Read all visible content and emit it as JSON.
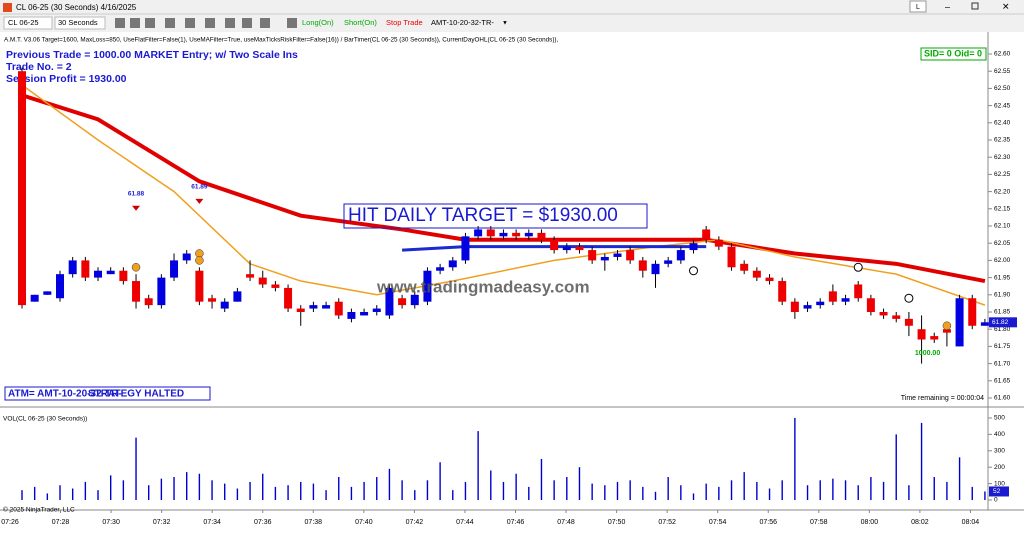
{
  "window": {
    "title": "CL 06-25 (30 Seconds)  4/16/2025",
    "button": "L"
  },
  "toolbar": {
    "instrument": "CL 06-25",
    "interval": "30 Seconds",
    "long": "Long(On)",
    "short": "Short(On)",
    "stop": "Stop Trade",
    "atm": "AMT-10-20-32-TR-"
  },
  "chart_data": [
    {
      "type": "candlestick",
      "indicator_label": "A.M.T. V3.06 Target=1600, MaxLoss=850, UseFlatFilter=False(1), UseMAFilter=True, useMaxTicksRiskFilter=False(16)) / BarTimer(CL 06-25 (30 Seconds)), CurrentDayOHL(CL 06-25 (30 Seconds)),",
      "info_lines": [
        "Previous Trade = 1000.00    MARKET Entry;  w/ Two Scale Ins",
        "Trade No. = 2",
        "Session Profit = 1930.00"
      ],
      "sid_box": "SID= 0   Oid= 0",
      "target_text": "HIT DAILY TARGET = $1930.00",
      "watermark": "www.tradingmadeasy.com",
      "atm_text": "ATM= AMT-10-20-32-TR-",
      "halt_text": "STRATEGY HALTED",
      "time_remaining": "Time remaining = 00:00:04",
      "copyright": "© 2025 NinjaTrader, LLC",
      "up_color": "#0000e0",
      "down_color": "#ee0000",
      "open": [
        62.55,
        61.88,
        61.9,
        61.89,
        61.96,
        62.0,
        61.95,
        61.96,
        61.97,
        61.94,
        61.89,
        61.87,
        61.95,
        62.0,
        61.97,
        61.89,
        61.86,
        61.88,
        61.96,
        61.95,
        61.93,
        61.92,
        61.86,
        61.86,
        61.86,
        61.88,
        61.83,
        61.84,
        61.85,
        61.84,
        61.89,
        61.87,
        61.88,
        61.97,
        61.98,
        62.0,
        62.07,
        62.09,
        62.07,
        62.08,
        62.07,
        62.08,
        62.06,
        62.03,
        62.04,
        62.03,
        62.0,
        62.01,
        62.03,
        62.0,
        61.96,
        61.99,
        62.0,
        62.03,
        62.09,
        62.06,
        62.04,
        61.99,
        61.97,
        61.95,
        61.94,
        61.88,
        61.86,
        61.87,
        61.91,
        61.88,
        61.93,
        61.89,
        61.85,
        61.84,
        61.83,
        61.8,
        61.78,
        61.8,
        61.75,
        61.89,
        61.81
      ],
      "high": [
        62.56,
        61.9,
        61.91,
        61.97,
        62.01,
        62.01,
        61.98,
        61.98,
        61.98,
        61.96,
        61.9,
        61.96,
        62.02,
        62.03,
        61.98,
        61.9,
        61.89,
        61.92,
        62.0,
        61.97,
        61.94,
        61.93,
        61.87,
        61.88,
        61.88,
        61.89,
        61.86,
        61.86,
        61.87,
        61.93,
        61.9,
        61.91,
        61.98,
        61.99,
        62.01,
        62.08,
        62.1,
        62.1,
        62.09,
        62.09,
        62.09,
        62.09,
        62.07,
        62.05,
        62.05,
        62.04,
        62.02,
        62.03,
        62.04,
        62.01,
        62.0,
        62.01,
        62.04,
        62.06,
        62.1,
        62.07,
        62.05,
        62.0,
        61.98,
        61.96,
        61.95,
        61.89,
        61.88,
        61.89,
        61.93,
        61.9,
        61.94,
        61.9,
        61.86,
        61.85,
        61.85,
        61.84,
        61.79,
        61.81,
        61.9,
        61.9,
        61.83
      ],
      "low": [
        61.86,
        61.88,
        61.9,
        61.88,
        61.95,
        61.94,
        61.94,
        61.96,
        61.93,
        61.86,
        61.86,
        61.86,
        61.94,
        61.99,
        61.87,
        61.86,
        61.85,
        61.88,
        61.94,
        61.92,
        61.91,
        61.85,
        61.81,
        61.85,
        61.86,
        61.83,
        61.82,
        61.84,
        61.84,
        61.83,
        61.86,
        61.86,
        61.87,
        61.96,
        61.97,
        61.99,
        62.06,
        62.06,
        62.06,
        62.06,
        62.06,
        62.05,
        62.02,
        62.02,
        62.02,
        61.99,
        61.97,
        62.0,
        61.99,
        61.95,
        61.92,
        61.98,
        61.99,
        62.02,
        62.05,
        62.03,
        61.97,
        61.96,
        61.94,
        61.93,
        61.87,
        61.83,
        61.85,
        61.86,
        61.87,
        61.87,
        61.88,
        61.84,
        61.83,
        61.82,
        61.78,
        61.7,
        61.76,
        61.75,
        61.75,
        61.8,
        61.81
      ],
      "close": [
        61.87,
        61.9,
        61.91,
        61.96,
        62.0,
        61.95,
        61.97,
        61.97,
        61.94,
        61.88,
        61.87,
        61.95,
        62.0,
        62.02,
        61.88,
        61.88,
        61.88,
        61.91,
        61.95,
        61.93,
        61.92,
        61.86,
        61.85,
        61.87,
        61.87,
        61.84,
        61.85,
        61.85,
        61.86,
        61.92,
        61.87,
        61.9,
        61.97,
        61.98,
        62.0,
        62.07,
        62.09,
        62.07,
        62.08,
        62.07,
        62.08,
        62.06,
        62.03,
        62.04,
        62.03,
        62.0,
        62.01,
        62.02,
        62.0,
        61.97,
        61.99,
        62.0,
        62.03,
        62.05,
        62.06,
        62.04,
        61.98,
        61.97,
        61.95,
        61.94,
        61.88,
        61.85,
        61.87,
        61.88,
        61.88,
        61.89,
        61.89,
        61.85,
        61.84,
        61.83,
        61.81,
        61.77,
        61.77,
        61.79,
        61.89,
        61.81,
        61.82
      ],
      "series": [
        {
          "color": "#e00000",
          "width": 4,
          "x": [
            0,
            6,
            14,
            22,
            30,
            35,
            46,
            54,
            61,
            69,
            76
          ],
          "values": [
            62.48,
            62.41,
            62.23,
            62.13,
            62.09,
            62.06,
            62.06,
            62.06,
            62.02,
            61.99,
            61.94
          ]
        },
        {
          "color": "#f0a020",
          "width": 1.5,
          "x": [
            0,
            6,
            12,
            18,
            22,
            28,
            34,
            42,
            50,
            55,
            61,
            69,
            76
          ],
          "values": [
            62.51,
            62.35,
            62.2,
            61.99,
            61.94,
            61.9,
            61.94,
            62.0,
            62.04,
            62.06,
            62.01,
            61.96,
            61.87
          ]
        },
        {
          "color": "#1a2ad0",
          "width": 3,
          "x": [
            30,
            35,
            40,
            54
          ],
          "values": [
            62.03,
            62.04,
            62.04,
            62.04
          ]
        }
      ],
      "signals": [
        {
          "x": 9,
          "value": 62.15,
          "label": "61.88"
        },
        {
          "x": 14,
          "value": 62.17,
          "label": "61.89"
        }
      ],
      "orange_markers": {
        "x": [
          9,
          14,
          14,
          73
        ],
        "values": [
          61.98,
          62.02,
          62.0,
          61.81
        ]
      },
      "hollow_markers": {
        "x": [
          53,
          66,
          70
        ],
        "values": [
          61.97,
          61.98,
          61.89
        ]
      },
      "exit_label": {
        "x": 71,
        "value": 61.73,
        "label": "1000.00"
      },
      "ylim": [
        61.5765,
        62.6
      ],
      "yticks": [
        {
          "value": 62.6,
          "label": "62.60"
        },
        {
          "value": 62.55,
          "label": "62.55"
        },
        {
          "value": 62.5,
          "label": "62.50"
        },
        {
          "value": 62.45,
          "label": "62.45"
        },
        {
          "value": 62.4,
          "label": "62.40"
        },
        {
          "value": 62.35,
          "label": "62.35"
        },
        {
          "value": 62.3,
          "label": "62.30"
        },
        {
          "value": 62.25,
          "label": "62.25"
        },
        {
          "value": 62.2,
          "label": "62.20"
        },
        {
          "value": 62.15,
          "label": "62.15"
        },
        {
          "value": 62.1,
          "label": "62.10"
        },
        {
          "value": 62.05,
          "label": "62.05"
        },
        {
          "value": 62,
          "label": "62.00"
        },
        {
          "value": 61.95,
          "label": "61.95"
        },
        {
          "value": 61.9,
          "label": "61.90"
        },
        {
          "value": 61.85,
          "label": "61.85"
        },
        {
          "value": 61.8,
          "label": "61.80"
        },
        {
          "value": 61.75,
          "label": "61.75"
        },
        {
          "value": 61.7,
          "label": "61.70"
        },
        {
          "value": 61.65,
          "label": "61.65"
        },
        {
          "value": 61.6,
          "label": "61.60"
        }
      ]
    },
    {
      "type": "bar",
      "title": "VOL(CL 06-25 (30 Seconds))",
      "color": "#0000d0",
      "values": [
        60,
        80,
        40,
        90,
        70,
        110,
        60,
        150,
        120,
        380,
        90,
        130,
        140,
        170,
        160,
        120,
        100,
        70,
        110,
        160,
        80,
        90,
        110,
        100,
        60,
        140,
        80,
        110,
        140,
        190,
        120,
        60,
        120,
        230,
        60,
        110,
        420,
        180,
        110,
        160,
        80,
        250,
        120,
        140,
        200,
        100,
        90,
        110,
        120,
        80,
        50,
        140,
        90,
        40,
        100,
        80,
        120,
        170,
        110,
        70,
        120,
        500,
        90,
        120,
        130,
        120,
        90,
        140,
        110,
        400,
        90,
        470,
        140,
        110,
        260,
        80,
        52
      ],
      "ylim": [
        0,
        540
      ],
      "yticks": [
        0,
        100,
        200,
        300,
        400,
        500
      ],
      "time_labels": [
        "07:26",
        "07:28",
        "07:30",
        "07:32",
        "07:34",
        "07:36",
        "07:38",
        "07:40",
        "07:42",
        "07:44",
        "07:46",
        "07:48",
        "07:50",
        "07:52",
        "07:54",
        "07:56",
        "07:58",
        "08:00",
        "08:02",
        "08:04"
      ]
    }
  ]
}
